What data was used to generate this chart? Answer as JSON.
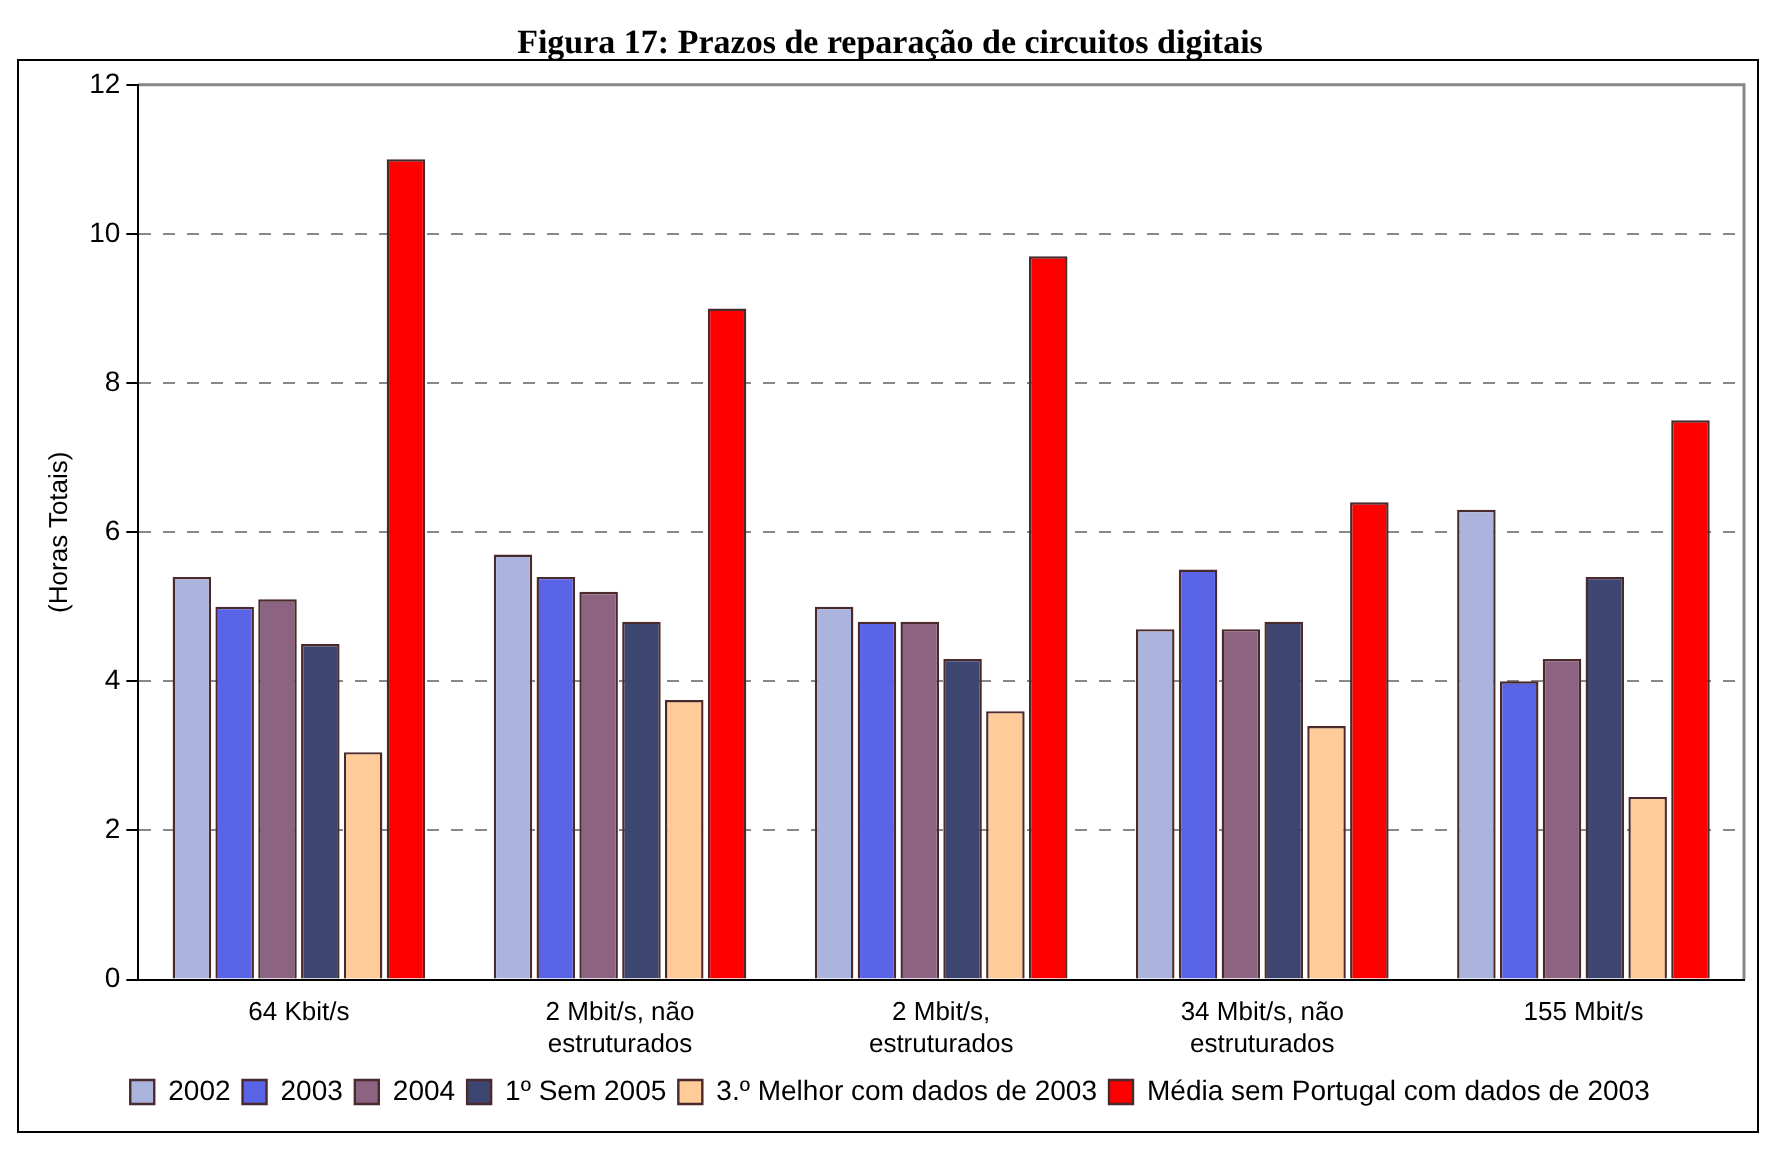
{
  "chart_data": {
    "type": "bar",
    "title": "Figura 17: Prazos de reparação de circuitos digitais",
    "ylabel": "(Horas Totais)",
    "categories": [
      "64 Kbit/s",
      "2 Mbit/s, não estruturados",
      "2 Mbit/s, estruturados",
      "34 Mbit/s, não estruturados",
      "155 Mbit/s"
    ],
    "series": [
      {
        "name": "2002",
        "color": "#aab4dc",
        "values": [
          5.4,
          5.7,
          5.0,
          4.7,
          6.3
        ]
      },
      {
        "name": "2003",
        "color": "#5a64e6",
        "values": [
          5.0,
          5.4,
          4.8,
          5.5,
          4.0
        ]
      },
      {
        "name": "2004",
        "color": "#8c6482",
        "values": [
          5.1,
          5.2,
          4.8,
          4.7,
          4.3
        ]
      },
      {
        "name": "1º Sem 2005",
        "color": "#3c4670",
        "values": [
          4.5,
          4.8,
          4.3,
          4.8,
          5.4
        ]
      },
      {
        "name": "3.º Melhor com dados de 2003",
        "color": "#ffcc99",
        "values": [
          3.05,
          3.75,
          3.6,
          3.4,
          2.45
        ]
      },
      {
        "name": "Média sem Portugal com dados de 2003",
        "color": "#ff0000",
        "values": [
          11.0,
          9.0,
          9.7,
          6.4,
          7.5
        ]
      }
    ],
    "ylim": [
      0,
      12
    ],
    "yticks": [
      0,
      2,
      4,
      6,
      8,
      10,
      12
    ],
    "grid": "y",
    "legend": "bottom"
  }
}
